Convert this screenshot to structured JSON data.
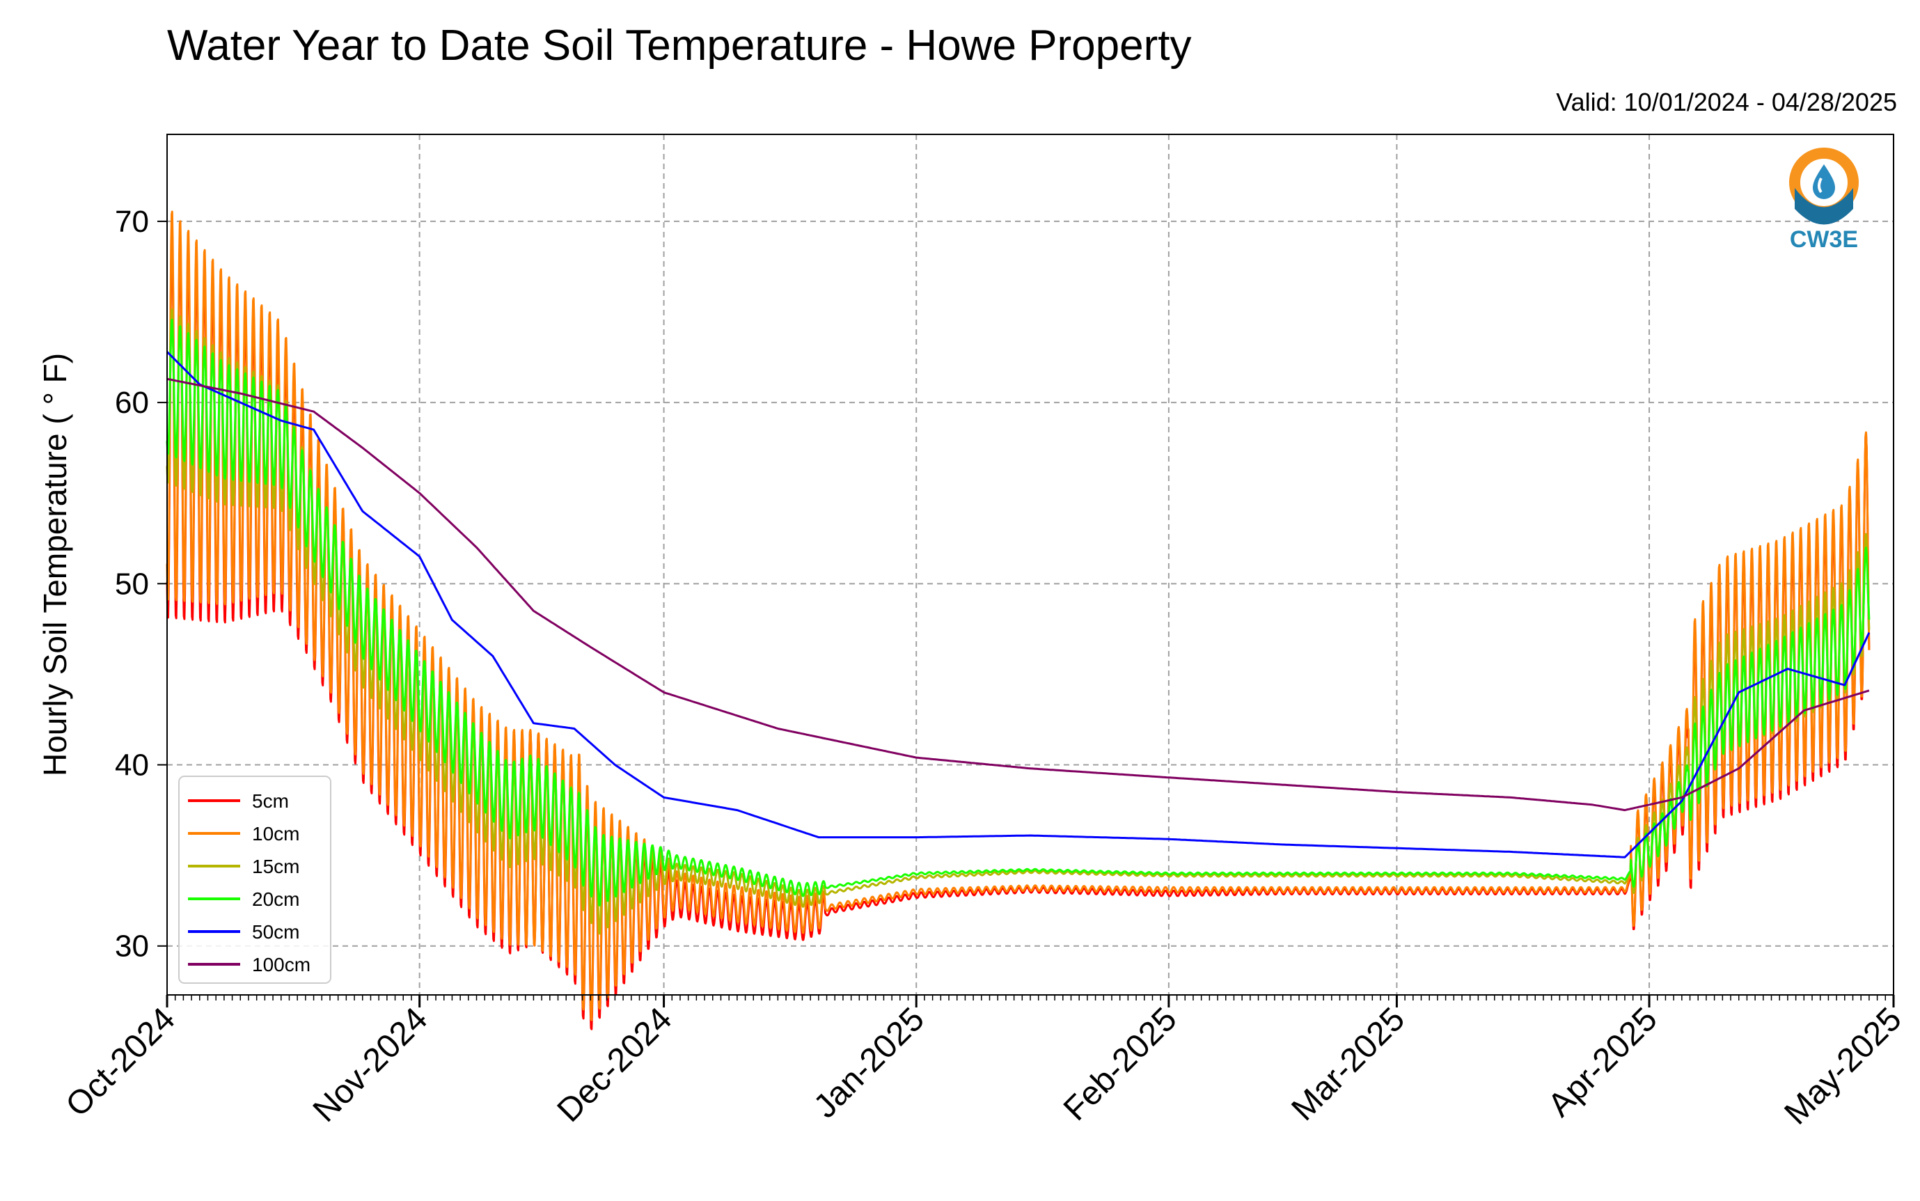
{
  "chart_data": {
    "type": "line",
    "title": "Water Year to Date Soil Temperature - Howe Property",
    "subtitle": "Valid: 10/01/2024 - 04/28/2025",
    "ylabel": "Hourly Soil Temperature ( ° F)",
    "xlabel": "",
    "xlim": [
      "2024-10-01",
      "2025-05-01"
    ],
    "ylim": [
      27.3,
      74.8
    ],
    "yticks": [
      30,
      40,
      50,
      60,
      70
    ],
    "xticks": [
      {
        "date": "2024-10-01",
        "label": "Oct-2024"
      },
      {
        "date": "2024-11-01",
        "label": "Nov-2024"
      },
      {
        "date": "2024-12-01",
        "label": "Dec-2024"
      },
      {
        "date": "2025-01-01",
        "label": "Jan-2025"
      },
      {
        "date": "2025-02-01",
        "label": "Feb-2025"
      },
      {
        "date": "2025-03-01",
        "label": "Mar-2025"
      },
      {
        "date": "2025-04-01",
        "label": "Apr-2025"
      },
      {
        "date": "2025-05-01",
        "label": "May-2025"
      }
    ],
    "grid": true,
    "legend_position": "lower-left",
    "logo_text": "CW3E",
    "series": [
      {
        "name": "5cm",
        "color": "#ff0000",
        "amp": 1.0,
        "x": [
          "2024-10-01",
          "2024-10-08",
          "2024-10-15",
          "2024-10-18",
          "2024-10-25",
          "2024-11-01",
          "2024-11-08",
          "2024-11-12",
          "2024-11-15",
          "2024-11-20",
          "2024-11-22",
          "2024-12-01",
          "2024-12-10",
          "2024-12-18",
          "2024-12-22",
          "2025-01-01",
          "2025-01-15",
          "2025-02-01",
          "2025-02-15",
          "2025-03-01",
          "2025-03-15",
          "2025-03-29",
          "2025-04-03",
          "2025-04-10",
          "2025-04-17",
          "2025-04-25",
          "2025-04-28"
        ],
        "y": [
          59,
          57,
          56,
          53,
          45,
          41,
          37,
          35.5,
          36,
          34,
          31.5,
          32.8,
          31.8,
          31.3,
          32,
          32.8,
          33.1,
          32.9,
          33,
          33,
          33,
          33,
          37,
          44,
          45,
          47,
          52
        ]
      },
      {
        "name": "10cm",
        "color": "#ff8000",
        "amp": 1.0,
        "x": [
          "2024-10-01",
          "2024-10-08",
          "2024-10-15",
          "2024-10-18",
          "2024-10-25",
          "2024-11-01",
          "2024-11-08",
          "2024-11-12",
          "2024-11-15",
          "2024-11-20",
          "2024-11-22",
          "2024-12-01",
          "2024-12-10",
          "2024-12-18",
          "2024-12-22",
          "2025-01-01",
          "2025-01-15",
          "2025-02-01",
          "2025-02-15",
          "2025-03-01",
          "2025-03-15",
          "2025-03-29",
          "2025-04-03",
          "2025-04-10",
          "2025-04-17",
          "2025-04-25",
          "2025-04-28"
        ],
        "y": [
          60,
          58,
          57,
          53.5,
          45.5,
          41.5,
          37.5,
          36,
          36,
          34.5,
          32,
          33.3,
          32.3,
          31.7,
          32.2,
          33,
          33.2,
          33.1,
          33.1,
          33.1,
          33.1,
          33.1,
          37.5,
          44.5,
          45.5,
          47.5,
          52
        ]
      },
      {
        "name": "15cm",
        "color": "#b5b500",
        "amp": 0.45,
        "x": [
          "2024-10-01",
          "2024-10-08",
          "2024-10-15",
          "2024-10-18",
          "2024-10-25",
          "2024-11-01",
          "2024-11-08",
          "2024-11-12",
          "2024-11-15",
          "2024-11-20",
          "2024-11-23",
          "2024-12-01",
          "2024-12-10",
          "2024-12-18",
          "2024-12-22",
          "2025-01-01",
          "2025-01-15",
          "2025-02-01",
          "2025-02-15",
          "2025-03-01",
          "2025-03-15",
          "2025-03-29",
          "2025-04-03",
          "2025-04-10",
          "2025-04-17",
          "2025-04-25",
          "2025-04-28"
        ],
        "y": [
          60.5,
          58.5,
          57.5,
          54,
          47,
          43,
          39,
          37,
          37.5,
          36,
          33.2,
          34.2,
          33.6,
          32.6,
          33,
          33.8,
          34.1,
          33.9,
          33.9,
          33.9,
          33.9,
          33.5,
          37,
          44,
          45,
          47,
          50
        ]
      },
      {
        "name": "20cm",
        "color": "#1aff00",
        "amp": 0.35,
        "x": [
          "2024-10-01",
          "2024-10-08",
          "2024-10-15",
          "2024-10-18",
          "2024-10-25",
          "2024-11-01",
          "2024-11-08",
          "2024-11-12",
          "2024-11-15",
          "2024-11-20",
          "2024-11-23",
          "2024-12-01",
          "2024-12-10",
          "2024-12-18",
          "2024-12-22",
          "2025-01-01",
          "2025-01-15",
          "2025-02-01",
          "2025-02-15",
          "2025-03-01",
          "2025-03-15",
          "2025-03-29",
          "2025-04-03",
          "2025-04-10",
          "2025-04-17",
          "2025-04-25",
          "2025-04-28"
        ],
        "y": [
          61,
          59,
          58,
          54.5,
          48,
          44,
          40,
          38,
          38.5,
          36.5,
          34.2,
          34.8,
          34,
          33.1,
          33.3,
          34,
          34.2,
          34,
          34,
          34,
          34,
          33.7,
          36.5,
          43,
          44.5,
          46.5,
          50
        ]
      },
      {
        "name": "50cm",
        "color": "#0000ff",
        "amp": 0,
        "x": [
          "2024-10-01",
          "2024-10-05",
          "2024-10-15",
          "2024-10-19",
          "2024-10-25",
          "2024-11-01",
          "2024-11-05",
          "2024-11-10",
          "2024-11-15",
          "2024-11-20",
          "2024-11-25",
          "2024-12-01",
          "2024-12-10",
          "2024-12-20",
          "2025-01-01",
          "2025-01-15",
          "2025-02-01",
          "2025-02-15",
          "2025-03-01",
          "2025-03-15",
          "2025-03-29",
          "2025-04-05",
          "2025-04-12",
          "2025-04-18",
          "2025-04-25",
          "2025-04-28"
        ],
        "y": [
          62.8,
          61,
          59,
          58.5,
          54,
          51.5,
          48,
          46,
          42.3,
          42,
          40,
          38.2,
          37.5,
          36,
          36,
          36.1,
          35.9,
          35.6,
          35.4,
          35.2,
          34.9,
          38,
          44,
          45.3,
          44.4,
          47.3
        ]
      },
      {
        "name": "100cm",
        "color": "#800060",
        "amp": 0,
        "x": [
          "2024-10-01",
          "2024-10-10",
          "2024-10-19",
          "2024-10-25",
          "2024-11-01",
          "2024-11-08",
          "2024-11-15",
          "2024-11-22",
          "2024-12-01",
          "2024-12-15",
          "2025-01-01",
          "2025-01-15",
          "2025-02-01",
          "2025-02-15",
          "2025-03-01",
          "2025-03-15",
          "2025-03-25",
          "2025-03-29",
          "2025-04-05",
          "2025-04-12",
          "2025-04-20",
          "2025-04-28"
        ],
        "y": [
          61.3,
          60.5,
          59.5,
          57.5,
          55,
          52,
          48.5,
          46.5,
          44,
          42,
          40.4,
          39.8,
          39.3,
          38.9,
          38.5,
          38.2,
          37.8,
          37.5,
          38.2,
          39.8,
          43,
          44.1
        ]
      }
    ]
  }
}
